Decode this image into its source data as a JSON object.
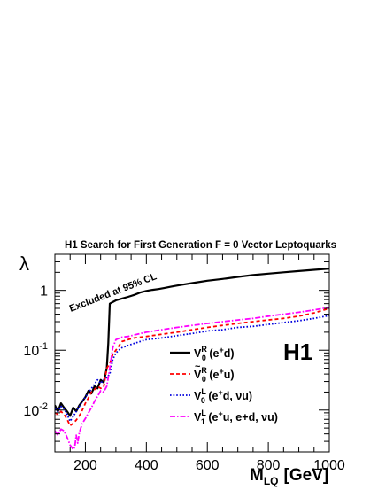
{
  "chart_data": {
    "type": "line",
    "title": "H1 Search for First Generation F = 0 Vector Leptoquarks",
    "ylabel": "λ",
    "xlabel": {
      "main": "M",
      "sub": "LQ",
      "unit": "[GeV]"
    },
    "xlim": [
      100,
      1000
    ],
    "ylim": [
      0.002,
      4
    ],
    "yscale": "log",
    "grid": false,
    "legend_position": "lower-right",
    "x_ticks": [
      200,
      400,
      600,
      800,
      1000
    ],
    "y_ticks": [
      {
        "value": 0.01,
        "base": "10",
        "exp": "-2"
      },
      {
        "value": 0.1,
        "base": "10",
        "exp": "-1"
      },
      {
        "value": 1,
        "base": "1",
        "exp": ""
      }
    ],
    "annotation": "Excluded at 95% CL",
    "experiment_label": "H1",
    "series": [
      {
        "name": "V0R (e+d)",
        "label": {
          "sym": "V",
          "sup": "R",
          "sub": "0",
          "tilde": false,
          "rest": " (e",
          "chg": "+",
          "tail": "d)",
          "extra": ""
        },
        "color": "#000000",
        "dash": "",
        "width": 2.2,
        "x": [
          100,
          110,
          120,
          130,
          140,
          150,
          160,
          170,
          180,
          190,
          200,
          210,
          220,
          230,
          240,
          250,
          260,
          270,
          275,
          280,
          300,
          320,
          340,
          360,
          380,
          400,
          420,
          440,
          460,
          480,
          500,
          550,
          600,
          650,
          700,
          750,
          800,
          850,
          900,
          950,
          1000
        ],
        "y": [
          0.012,
          0.0095,
          0.013,
          0.011,
          0.0095,
          0.008,
          0.011,
          0.0095,
          0.012,
          0.014,
          0.0165,
          0.021,
          0.019,
          0.025,
          0.023,
          0.032,
          0.029,
          0.05,
          0.13,
          0.6,
          0.68,
          0.73,
          0.78,
          0.84,
          0.92,
          0.98,
          1.02,
          1.05,
          1.1,
          1.15,
          1.2,
          1.32,
          1.45,
          1.55,
          1.68,
          1.8,
          1.9,
          2.0,
          2.1,
          2.2,
          2.3
        ]
      },
      {
        "name": "Ṽ0R (e+u)",
        "label": {
          "sym": "V",
          "sup": "R",
          "sub": "0",
          "tilde": true,
          "rest": " (e",
          "chg": "+",
          "tail": "u)",
          "extra": ""
        },
        "color": "#ff0000",
        "dash": "4 3",
        "width": 1.8,
        "x": [
          100,
          110,
          120,
          130,
          140,
          150,
          160,
          170,
          180,
          190,
          200,
          210,
          220,
          230,
          240,
          250,
          260,
          270,
          280,
          290,
          300,
          320,
          340,
          360,
          380,
          400,
          450,
          500,
          550,
          600,
          650,
          700,
          750,
          800,
          850,
          900,
          950,
          1000
        ],
        "y": [
          0.009,
          0.0085,
          0.0095,
          0.0085,
          0.007,
          0.0055,
          0.006,
          0.0068,
          0.008,
          0.01,
          0.013,
          0.016,
          0.02,
          0.022,
          0.025,
          0.023,
          0.024,
          0.05,
          0.06,
          0.085,
          0.1,
          0.14,
          0.15,
          0.16,
          0.165,
          0.17,
          0.185,
          0.2,
          0.22,
          0.24,
          0.26,
          0.28,
          0.3,
          0.32,
          0.34,
          0.37,
          0.42,
          0.5
        ]
      },
      {
        "name": "V0L (e+d, ν̄u)",
        "label": {
          "sym": "V",
          "sup": "L",
          "sub": "0",
          "tilde": false,
          "rest": " (e",
          "chg": "+",
          "tail": "d, ",
          "extra": "νu)"
        },
        "color": "#0000dd",
        "dash": "1.6 2",
        "width": 1.8,
        "x": [
          100,
          110,
          120,
          130,
          140,
          150,
          160,
          170,
          180,
          190,
          200,
          210,
          220,
          230,
          240,
          250,
          260,
          270,
          280,
          290,
          300,
          310,
          320,
          340,
          360,
          380,
          400,
          450,
          500,
          550,
          600,
          650,
          700,
          750,
          800,
          850,
          900,
          950,
          1000
        ],
        "y": [
          0.0105,
          0.0095,
          0.0115,
          0.0105,
          0.0085,
          0.0065,
          0.0078,
          0.0095,
          0.0115,
          0.014,
          0.0165,
          0.019,
          0.023,
          0.027,
          0.032,
          0.028,
          0.032,
          0.035,
          0.04,
          0.07,
          0.09,
          0.1,
          0.11,
          0.12,
          0.13,
          0.14,
          0.15,
          0.16,
          0.175,
          0.19,
          0.21,
          0.22,
          0.24,
          0.25,
          0.27,
          0.29,
          0.31,
          0.34,
          0.38
        ]
      },
      {
        "name": "V1L (e+u, e+d, ν̄u)",
        "label": {
          "sym": "V",
          "sup": "L",
          "sub": "1",
          "tilde": false,
          "rest": " (e",
          "chg": "+",
          "tail": "u, e",
          "extra": "+d, νu)"
        },
        "color": "#ff00ff",
        "dash": "6 2 1.5 2",
        "width": 1.8,
        "x": [
          100,
          110,
          120,
          130,
          140,
          150,
          160,
          165,
          170,
          175,
          180,
          190,
          200,
          210,
          220,
          230,
          240,
          250,
          260,
          270,
          280,
          290,
          300,
          320,
          340,
          360,
          380,
          400,
          450,
          500,
          550,
          600,
          650,
          700,
          750,
          800,
          850,
          900,
          950,
          1000
        ],
        "y": [
          0.0045,
          0.0038,
          0.0048,
          0.0045,
          0.0035,
          0.0026,
          0.0022,
          0.0024,
          0.0038,
          0.0028,
          0.0042,
          0.006,
          0.0072,
          0.009,
          0.011,
          0.014,
          0.017,
          0.021,
          0.02,
          0.025,
          0.05,
          0.11,
          0.15,
          0.165,
          0.17,
          0.18,
          0.19,
          0.2,
          0.22,
          0.24,
          0.26,
          0.28,
          0.3,
          0.32,
          0.34,
          0.37,
          0.4,
          0.43,
          0.47,
          0.52
        ]
      }
    ]
  }
}
